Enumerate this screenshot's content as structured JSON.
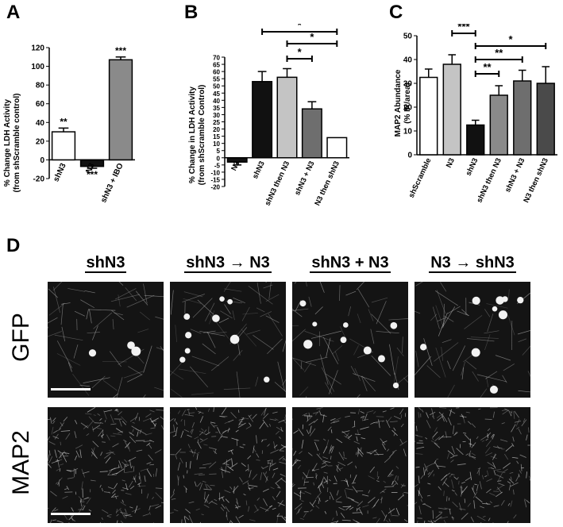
{
  "panels": {
    "A": {
      "letter": "A",
      "ylabel_line1": "% Change LDH Activity",
      "ylabel_line2": "(from shScramble control)"
    },
    "B": {
      "letter": "B",
      "ylabel_line1": "% Change in LDH Activity",
      "ylabel_line2": "(from shScramble  Control)"
    },
    "C": {
      "letter": "C",
      "ylabel_line1": "MAP2  Abundance",
      "ylabel_line2": "(% IR/area)"
    },
    "D": {
      "letter": "D",
      "columns": [
        "shN3",
        "shN3 → N3",
        "shN3 + N3",
        "N3 → shN3"
      ],
      "rows": [
        "GFP",
        "MAP2"
      ]
    }
  },
  "chart_data": [
    {
      "panel": "A",
      "type": "bar",
      "categories": [
        "shN3",
        "N3",
        "shN3 + IBO"
      ],
      "values": [
        30,
        -7,
        107
      ],
      "errors": [
        4,
        2,
        3
      ],
      "significance": [
        "**",
        "***",
        "***"
      ],
      "colors": [
        "#ffffff",
        "#111111",
        "#8a8a8a"
      ],
      "ylim": [
        -20,
        120
      ],
      "yticks": [
        "-20",
        "0",
        "20",
        "40",
        "60",
        "80",
        "100",
        "120"
      ],
      "ylabel": "% Change LDH Activity (from shScramble control)"
    },
    {
      "panel": "B",
      "type": "bar",
      "categories": [
        "N3",
        "shN3",
        "shN3 then N3",
        "shN3 + N3",
        "N3 then shN3"
      ],
      "values": [
        -3,
        53,
        56,
        34,
        14
      ],
      "errors": [
        2,
        7,
        6,
        5,
        0
      ],
      "colors": [
        "#111111",
        "#111111",
        "#c4c4c4",
        "#6e6e6e",
        "#ffffff"
      ],
      "ylim": [
        -20,
        70
      ],
      "yticks": [
        "-20",
        "-15",
        "-10",
        "-5",
        "0",
        "5",
        "10",
        "15",
        "20",
        "25",
        "30",
        "35",
        "40",
        "45",
        "50",
        "55",
        "60",
        "65",
        "70"
      ],
      "ylabel": "% Change in LDH Activity (from shScramble Control)",
      "brackets": [
        {
          "from": "shN3",
          "to": "N3 then shN3",
          "label": "*"
        },
        {
          "from": "shN3 then N3",
          "to": "N3 then shN3",
          "label": "*"
        },
        {
          "from": "shN3 then N3",
          "to": "shN3 + N3",
          "label": "*"
        }
      ]
    },
    {
      "panel": "C",
      "type": "bar",
      "categories": [
        "shScramble",
        "N3",
        "shN3",
        "shN3 then N3",
        "shN3 + N3",
        "N3 then shN3"
      ],
      "values": [
        32.5,
        38,
        12.5,
        25,
        31,
        30
      ],
      "errors": [
        3.5,
        4,
        2,
        4,
        4.5,
        7
      ],
      "colors": [
        "#ffffff",
        "#c4c4c4",
        "#111111",
        "#8a8a8a",
        "#6e6e6e",
        "#4a4a4a"
      ],
      "ylim": [
        0,
        50
      ],
      "yticks": [
        "0",
        "10",
        "20",
        "30",
        "40",
        "50"
      ],
      "ylabel": "MAP2 Abundance (% IR/area)",
      "brackets": [
        {
          "from": "N3",
          "to": "shN3",
          "label": "***"
        },
        {
          "from": "shN3",
          "to": "N3 then shN3",
          "label": "*"
        },
        {
          "from": "shN3",
          "to": "shN3 + N3",
          "label": "**"
        },
        {
          "from": "shN3",
          "to": "shN3 then N3",
          "label": "**"
        }
      ]
    }
  ]
}
